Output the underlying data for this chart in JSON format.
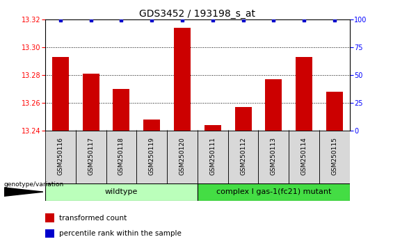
{
  "title": "GDS3452 / 193198_s_at",
  "categories": [
    "GSM250116",
    "GSM250117",
    "GSM250118",
    "GSM250119",
    "GSM250120",
    "GSM250111",
    "GSM250112",
    "GSM250113",
    "GSM250114",
    "GSM250115"
  ],
  "bar_values": [
    13.293,
    13.281,
    13.27,
    13.248,
    13.314,
    13.244,
    13.257,
    13.277,
    13.293,
    13.268
  ],
  "bar_color": "#cc0000",
  "percentile_color": "#0000cc",
  "ylim_left": [
    13.24,
    13.32
  ],
  "ylim_right": [
    0,
    100
  ],
  "yticks_left": [
    13.24,
    13.26,
    13.28,
    13.3,
    13.32
  ],
  "yticks_right": [
    0,
    25,
    50,
    75,
    100
  ],
  "grid_values": [
    13.26,
    13.28,
    13.3
  ],
  "wildtype_label": "wildtype",
  "mutant_label": "complex I gas-1(fc21) mutant",
  "genotype_label": "genotype/variation",
  "legend_bar_label": "transformed count",
  "legend_percentile_label": "percentile rank within the sample",
  "wildtype_color": "#bbffbb",
  "mutant_color": "#44dd44",
  "col_bg_color": "#d8d8d8",
  "title_fontsize": 10,
  "tick_fontsize": 7,
  "label_fontsize": 8,
  "bar_width": 0.55
}
